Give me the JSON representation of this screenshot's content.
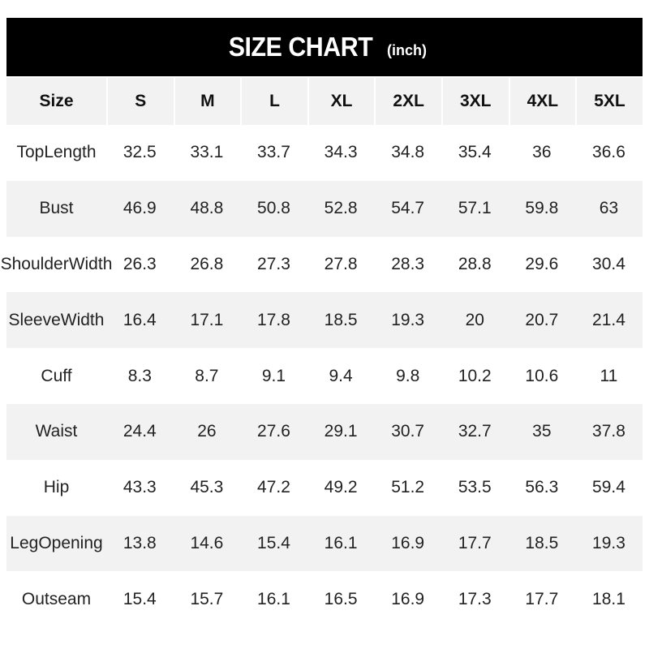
{
  "title": "SIZE CHART",
  "unit": "(inch)",
  "header": [
    "Size",
    "S",
    "M",
    "L",
    "XL",
    "2XL",
    "3XL",
    "4XL",
    "5XL"
  ],
  "rows": [
    {
      "label": [
        "Top",
        "Length"
      ],
      "values": [
        "32.5",
        "33.1",
        "33.7",
        "34.3",
        "34.8",
        "35.4",
        "36",
        "36.6"
      ]
    },
    {
      "label": [
        "Bust"
      ],
      "values": [
        "46.9",
        "48.8",
        "50.8",
        "52.8",
        "54.7",
        "57.1",
        "59.8",
        "63"
      ]
    },
    {
      "label": [
        "Shoulder",
        "Width"
      ],
      "values": [
        "26.3",
        "26.8",
        "27.3",
        "27.8",
        "28.3",
        "28.8",
        "29.6",
        "30.4"
      ]
    },
    {
      "label": [
        "Sleeve",
        "Width"
      ],
      "values": [
        "16.4",
        "17.1",
        "17.8",
        "18.5",
        "19.3",
        "20",
        "20.7",
        "21.4"
      ]
    },
    {
      "label": [
        "Cuff"
      ],
      "values": [
        "8.3",
        "8.7",
        "9.1",
        "9.4",
        "9.8",
        "10.2",
        "10.6",
        "11"
      ]
    },
    {
      "label": [
        "Waist"
      ],
      "values": [
        "24.4",
        "26",
        "27.6",
        "29.1",
        "30.7",
        "32.7",
        "35",
        "37.8"
      ]
    },
    {
      "label": [
        "Hip"
      ],
      "values": [
        "43.3",
        "45.3",
        "47.2",
        "49.2",
        "51.2",
        "53.5",
        "56.3",
        "59.4"
      ]
    },
    {
      "label": [
        "Leg",
        "Opening"
      ],
      "values": [
        "13.8",
        "14.6",
        "15.4",
        "16.1",
        "16.9",
        "17.7",
        "18.5",
        "19.3"
      ]
    },
    {
      "label": [
        "Outseam"
      ],
      "values": [
        "15.4",
        "15.7",
        "16.1",
        "16.5",
        "16.9",
        "17.3",
        "17.7",
        "18.1"
      ]
    }
  ],
  "colors": {
    "title_bg": "#000000",
    "stripe": "#f2f2f2"
  }
}
